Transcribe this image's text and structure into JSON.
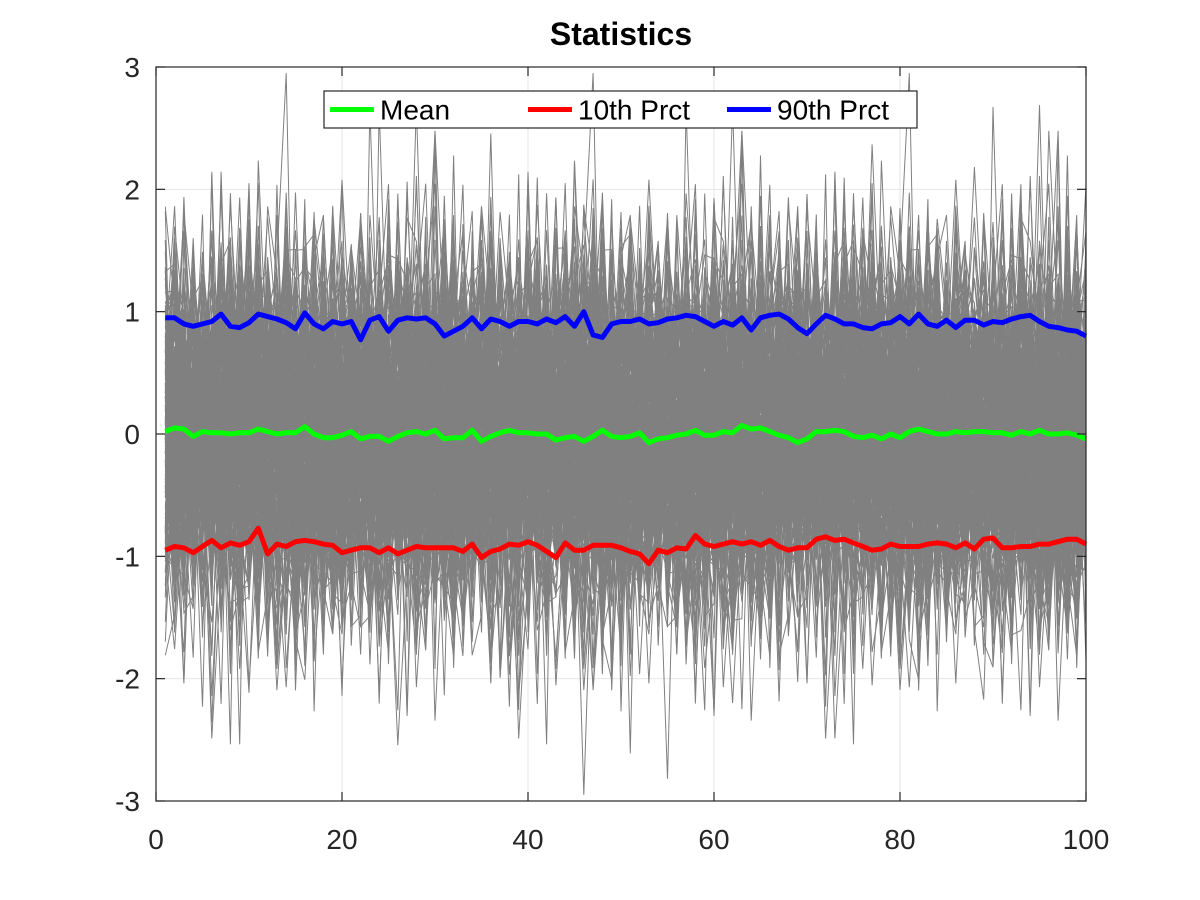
{
  "chart_data": {
    "type": "line",
    "title": "Statistics",
    "xlabel": "",
    "ylabel": "",
    "xlim": [
      0,
      100
    ],
    "ylim": [
      -3,
      3
    ],
    "xticks": [
      0,
      20,
      40,
      60,
      80,
      100
    ],
    "yticks": [
      3,
      2,
      1,
      0,
      -1,
      -2,
      -3
    ],
    "grid": true,
    "legend_position": "top",
    "background_samples": {
      "color": "#808080",
      "description_count": 200,
      "x_range": [
        1,
        100
      ]
    },
    "series": [
      {
        "name": "Mean",
        "color": "#00ff00",
        "values": [
          0.02,
          0.05,
          0.04,
          -0.02,
          0.02,
          0.01,
          0.01,
          0.0,
          0.01,
          0.01,
          0.04,
          0.02,
          0.0,
          0.01,
          0.01,
          0.06,
          0.0,
          -0.03,
          -0.03,
          -0.01,
          0.02,
          -0.04,
          -0.02,
          -0.02,
          -0.06,
          -0.02,
          0.01,
          0.02,
          0.0,
          0.03,
          -0.04,
          -0.03,
          -0.03,
          0.03,
          -0.06,
          -0.02,
          0.01,
          0.03,
          0.01,
          0.01,
          0.0,
          0.0,
          -0.05,
          -0.03,
          -0.02,
          -0.06,
          -0.02,
          0.03,
          -0.02,
          -0.03,
          -0.02,
          0.01,
          -0.07,
          -0.04,
          -0.03,
          -0.01,
          0.0,
          0.03,
          -0.01,
          -0.01,
          0.02,
          0.01,
          0.07,
          0.04,
          0.05,
          0.02,
          -0.01,
          -0.03,
          -0.07,
          -0.04,
          0.02,
          0.02,
          0.03,
          0.02,
          -0.02,
          -0.03,
          -0.01,
          -0.04,
          0.0,
          -0.03,
          0.02,
          0.04,
          0.02,
          0.0,
          0.0,
          0.02,
          0.01,
          0.02,
          0.02,
          0.01,
          0.01,
          -0.01,
          0.02,
          0.0,
          0.03,
          0.0,
          0.0,
          0.01,
          -0.01,
          -0.04
        ]
      },
      {
        "name": "10th Prct",
        "color": "#ff0000",
        "values": [
          -0.95,
          -0.92,
          -0.93,
          -0.97,
          -0.92,
          -0.87,
          -0.93,
          -0.89,
          -0.91,
          -0.88,
          -0.77,
          -0.98,
          -0.9,
          -0.92,
          -0.88,
          -0.87,
          -0.88,
          -0.9,
          -0.91,
          -0.97,
          -0.95,
          -0.93,
          -0.93,
          -0.97,
          -0.93,
          -0.98,
          -0.95,
          -0.92,
          -0.93,
          -0.93,
          -0.93,
          -0.93,
          -0.96,
          -0.9,
          -1.01,
          -0.96,
          -0.94,
          -0.9,
          -0.91,
          -0.88,
          -0.91,
          -0.96,
          -1.01,
          -0.89,
          -0.95,
          -0.95,
          -0.91,
          -0.91,
          -0.91,
          -0.93,
          -0.96,
          -0.98,
          -1.06,
          -0.95,
          -0.97,
          -0.93,
          -0.94,
          -0.83,
          -0.9,
          -0.92,
          -0.9,
          -0.88,
          -0.9,
          -0.88,
          -0.91,
          -0.87,
          -0.92,
          -0.95,
          -0.93,
          -0.93,
          -0.86,
          -0.84,
          -0.87,
          -0.86,
          -0.89,
          -0.92,
          -0.95,
          -0.94,
          -0.9,
          -0.92,
          -0.92,
          -0.92,
          -0.9,
          -0.89,
          -0.9,
          -0.93,
          -0.89,
          -0.94,
          -0.86,
          -0.85,
          -0.93,
          -0.93,
          -0.92,
          -0.92,
          -0.9,
          -0.9,
          -0.88,
          -0.86,
          -0.86,
          -0.9
        ]
      },
      {
        "name": "90th Prct",
        "color": "#0000ff",
        "values": [
          0.95,
          0.95,
          0.9,
          0.88,
          0.9,
          0.92,
          0.98,
          0.88,
          0.87,
          0.91,
          0.98,
          0.96,
          0.94,
          0.91,
          0.86,
          0.99,
          0.9,
          0.86,
          0.92,
          0.9,
          0.92,
          0.77,
          0.93,
          0.96,
          0.84,
          0.93,
          0.95,
          0.94,
          0.95,
          0.9,
          0.8,
          0.84,
          0.88,
          0.95,
          0.86,
          0.94,
          0.92,
          0.88,
          0.92,
          0.92,
          0.9,
          0.94,
          0.91,
          0.96,
          0.88,
          1.0,
          0.81,
          0.79,
          0.9,
          0.92,
          0.92,
          0.94,
          0.9,
          0.91,
          0.94,
          0.95,
          0.97,
          0.96,
          0.92,
          0.88,
          0.92,
          0.89,
          0.95,
          0.85,
          0.95,
          0.97,
          0.98,
          0.94,
          0.87,
          0.82,
          0.9,
          0.97,
          0.94,
          0.9,
          0.9,
          0.87,
          0.86,
          0.9,
          0.91,
          0.96,
          0.9,
          0.98,
          0.9,
          0.88,
          0.93,
          0.87,
          0.93,
          0.93,
          0.89,
          0.92,
          0.91,
          0.94,
          0.96,
          0.97,
          0.92,
          0.88,
          0.87,
          0.85,
          0.84,
          0.8
        ]
      }
    ]
  }
}
